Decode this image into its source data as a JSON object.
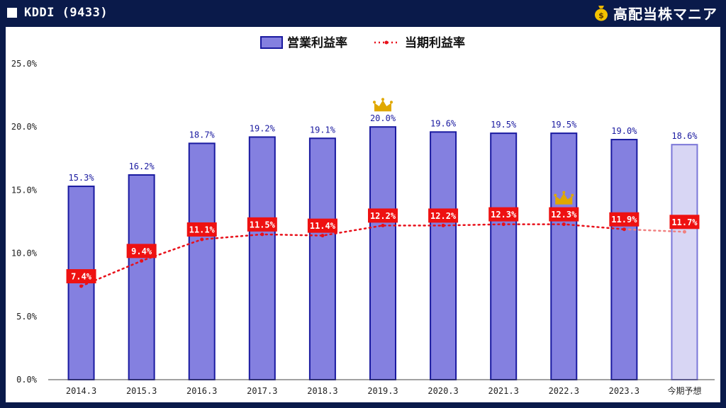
{
  "header": {
    "title": "KDDI (9433)",
    "brand": "高配当株マニア",
    "brand_icon": "money-bag-icon"
  },
  "colors": {
    "bar_fill": "#8480e0",
    "bar_stroke": "#1a1aa0",
    "forecast_fill": "#d8d6f4",
    "forecast_stroke": "#7a76d8",
    "line": "#e8101a",
    "label_bg": "#ee1111",
    "crown": "#e0a800"
  },
  "chart_data": {
    "type": "bar",
    "categories": [
      "2014.3",
      "2015.3",
      "2016.3",
      "2017.3",
      "2018.3",
      "2019.3",
      "2020.3",
      "2021.3",
      "2022.3",
      "2023.3",
      "今期予想"
    ],
    "series": [
      {
        "name": "営業利益率",
        "type": "bar",
        "values": [
          15.3,
          16.2,
          18.7,
          19.2,
          19.1,
          20.0,
          19.6,
          19.5,
          19.5,
          19.0,
          18.6
        ],
        "labels": [
          "15.3%",
          "16.2%",
          "18.7%",
          "19.2%",
          "19.1%",
          "20.0%",
          "19.6%",
          "19.5%",
          "19.5%",
          "19.0%",
          "18.6%"
        ],
        "forecast_index": 10
      },
      {
        "name": "当期利益率",
        "type": "line",
        "style": "dotted",
        "values": [
          7.4,
          9.4,
          11.1,
          11.5,
          11.4,
          12.2,
          12.2,
          12.3,
          12.3,
          11.9,
          11.7
        ],
        "labels": [
          "7.4%",
          "9.4%",
          "11.1%",
          "11.5%",
          "11.4%",
          "12.2%",
          "12.2%",
          "12.3%",
          "12.3%",
          "11.9%",
          "11.7%"
        ]
      }
    ],
    "ylim": [
      0,
      25
    ],
    "yticks": [
      "0.0%",
      "5.0%",
      "10.0%",
      "15.0%",
      "20.0%",
      "25.0%"
    ],
    "ytick_values": [
      0,
      5,
      10,
      15,
      20,
      25
    ],
    "legend_position": "top-center",
    "grid": false,
    "annotations": [
      {
        "type": "crown-icon",
        "series": 0,
        "index": 5
      },
      {
        "type": "crown-icon",
        "series": 1,
        "index": 8
      }
    ]
  }
}
